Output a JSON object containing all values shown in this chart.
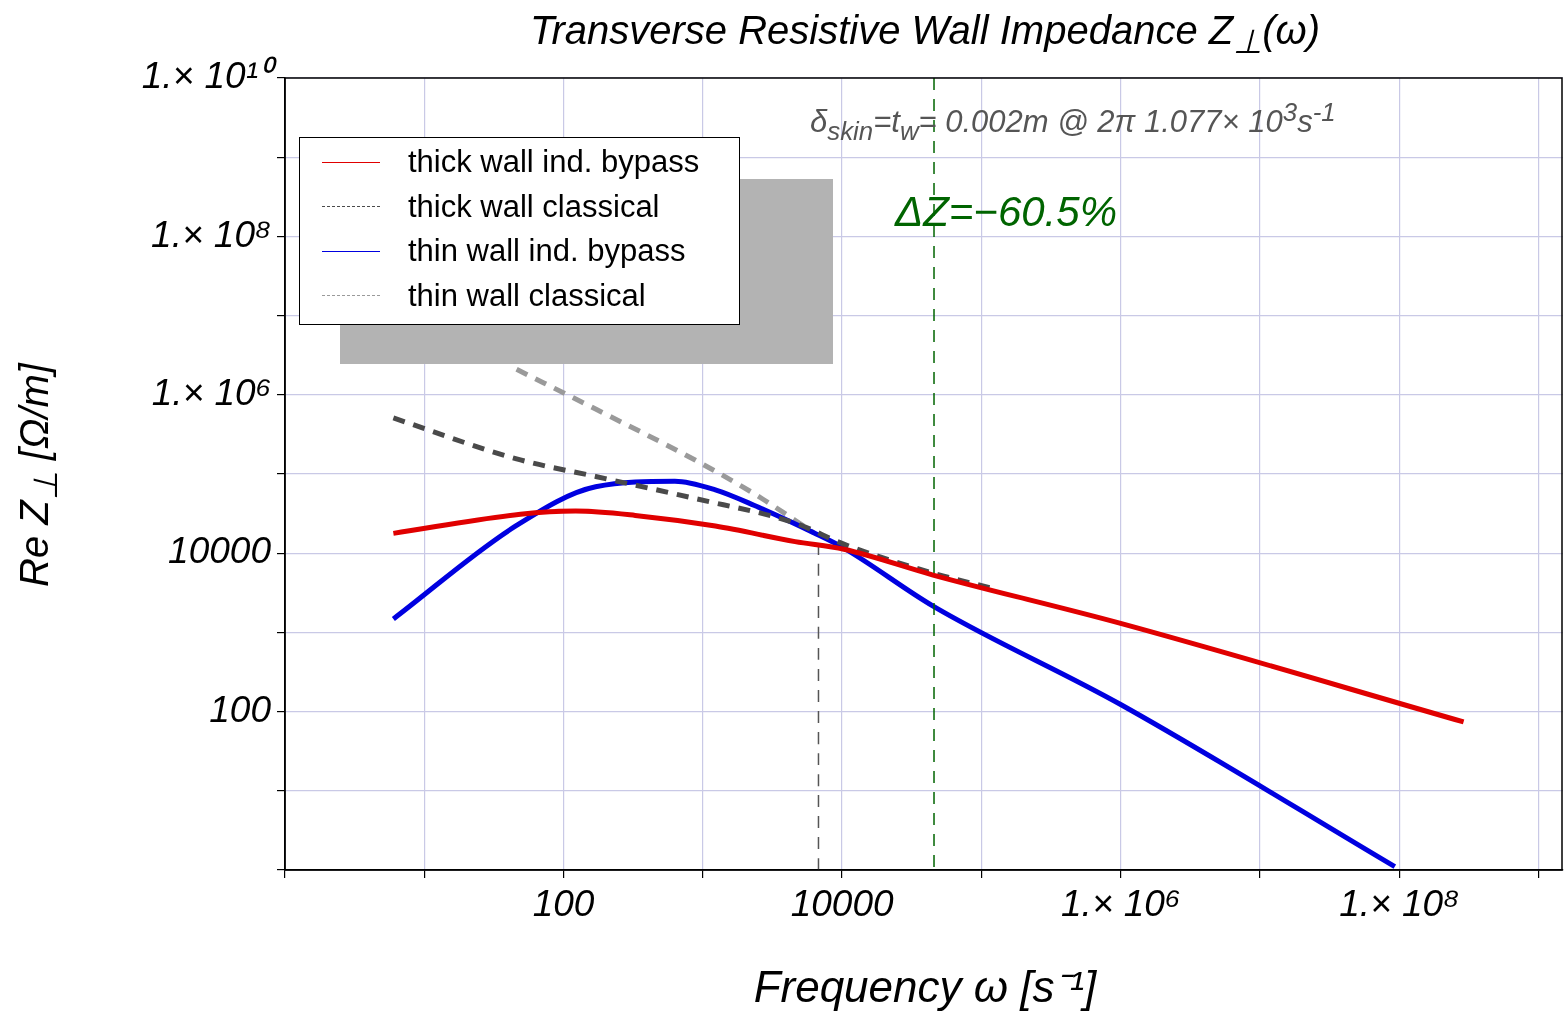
{
  "chart_data": {
    "type": "line",
    "title": "Transverse Resistive Wall Impedance  Z$_{⊥}$(ω)",
    "xlabel": "Frequency  ω  [s⁻¹]",
    "ylabel": "Re  Z$_{⊥}$  [Ω/m]",
    "log": "xy",
    "xlim": [
      1,
      1500000000.0
    ],
    "ylim": [
      1,
      10000000000.0
    ],
    "xticks": [
      {
        "value": 1,
        "label": null
      },
      {
        "value": 10,
        "label": null
      },
      100,
      {
        "value": 1000,
        "label": null
      },
      10000,
      {
        "value": 100000,
        "label": null
      },
      {
        "value": 1000000,
        "label": "1.× 10⁶"
      },
      {
        "value": 10000000,
        "label": null
      },
      {
        "value": 100000000,
        "label": "1.× 10⁸"
      },
      {
        "value": 1000000000,
        "label": null
      }
    ],
    "yticks": [
      {
        "value": 1,
        "label": null
      },
      {
        "value": 10,
        "label": null
      },
      100,
      {
        "value": 1000,
        "label": null
      },
      10000,
      {
        "value": 100000,
        "label": null
      },
      {
        "value": 1000000,
        "label": "1.× 10⁶"
      },
      {
        "value": 10000000,
        "label": null
      },
      {
        "value": 100000000,
        "label": "1.× 10⁸"
      },
      {
        "value": 1000000000,
        "label": null
      },
      {
        "value": 10000000000,
        "label": "1.× 10¹⁰"
      }
    ],
    "grid": true,
    "legend": "top left",
    "marker": "none",
    "series": [
      {
        "name": "thick wall ind. bypass",
        "color": "#e00000",
        "line_style": "solid",
        "x": [
          6,
          49,
          122,
          327,
          1230,
          4600,
          10300,
          45000,
          1000000,
          290000000
        ],
        "values": [
          17800,
          31000,
          34000,
          30000,
          22000,
          14000,
          11200,
          5300,
          1300,
          74
        ]
      },
      {
        "name": "thick wall classical",
        "color": "#4a4a4a",
        "line_style": "dashed",
        "x": [
          6,
          46,
          170,
          880,
          4600,
          10300,
          45000,
          120000
        ],
        "values": [
          510000,
          155000,
          93000,
          49000,
          24000,
          13000,
          5600,
          3600
        ]
      },
      {
        "name": "thin wall ind. bypass",
        "color": "#0000e0",
        "line_style": "solid",
        "x": [
          6,
          46,
          170,
          630,
          1230,
          2350,
          6300,
          10300,
          45000,
          1000000,
          93000000
        ],
        "values": [
          1480,
          22400,
          69000,
          81000,
          63000,
          40000,
          18000,
          11600,
          2150,
          123,
          1.1
        ]
      },
      {
        "name": "thin wall classical",
        "color": "#9a9a9a",
        "line_style": "dashed",
        "x": [
          46,
          170,
          880,
          2350,
          6300
        ],
        "values": [
          2100000,
          660000,
          150000,
          56000,
          18000
        ]
      },
      {
        "color": "#555555",
        "line_style": "dashed",
        "x": [
          6767,
          6767
        ],
        "values": [
          1,
          15000
        ]
      }
    ],
    "ref_lines": [
      {
        "axis": "x",
        "value": 45700,
        "color": "#006400",
        "line_style": "dashed"
      }
    ],
    "annotations": [
      "δ$_{skin}$=t$_{w}$= 0.002m @ 2π  1.077× 10$^{3}$s$^{-1}$",
      "ΔZ=−60.5%"
    ]
  }
}
